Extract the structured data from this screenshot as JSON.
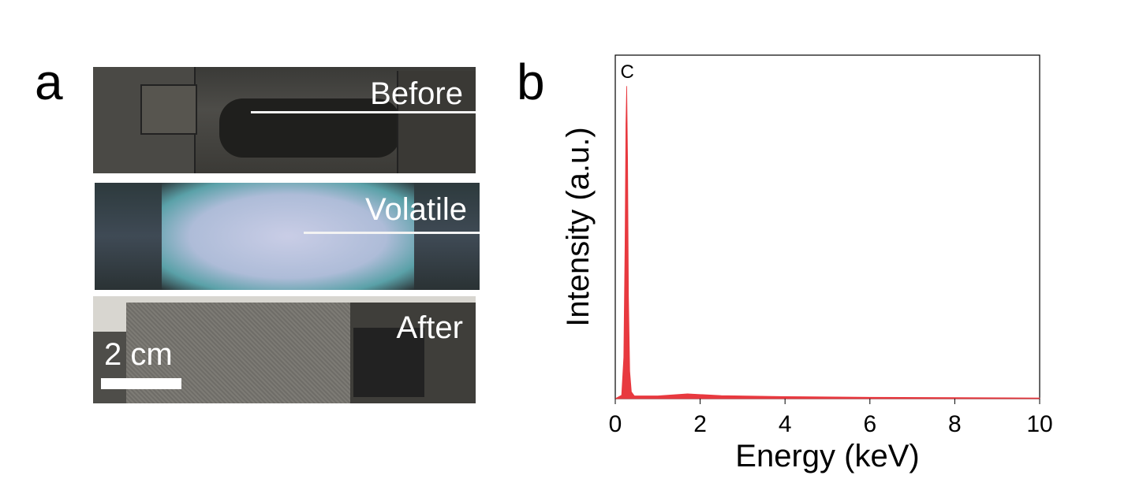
{
  "panel_a": {
    "label": "a",
    "photos": [
      {
        "caption": "Before"
      },
      {
        "caption": "Volatile"
      },
      {
        "caption": "After"
      }
    ],
    "scale_bar": "2 cm"
  },
  "panel_b": {
    "label": "b"
  },
  "chart_data": {
    "type": "area",
    "xlabel": "Energy (keV)",
    "ylabel": "Intensity (a.u.)",
    "xlim": [
      0,
      10
    ],
    "ylim": [
      0,
      1
    ],
    "xticks": [
      "0",
      "2",
      "4",
      "6",
      "8",
      "10"
    ],
    "yticks": [],
    "grid": false,
    "color": "#e8393f",
    "annotations": [
      {
        "text": "C",
        "x": 0.27
      }
    ],
    "x": [
      0,
      0.15,
      0.2,
      0.23,
      0.25,
      0.27,
      0.29,
      0.31,
      0.34,
      0.38,
      0.45,
      1.0,
      1.7,
      2.5,
      4,
      6,
      8,
      10
    ],
    "y": [
      0,
      0.01,
      0.12,
      0.45,
      0.8,
      0.91,
      0.7,
      0.3,
      0.08,
      0.02,
      0.008,
      0.008,
      0.014,
      0.009,
      0.006,
      0.004,
      0.003,
      0.002
    ]
  }
}
